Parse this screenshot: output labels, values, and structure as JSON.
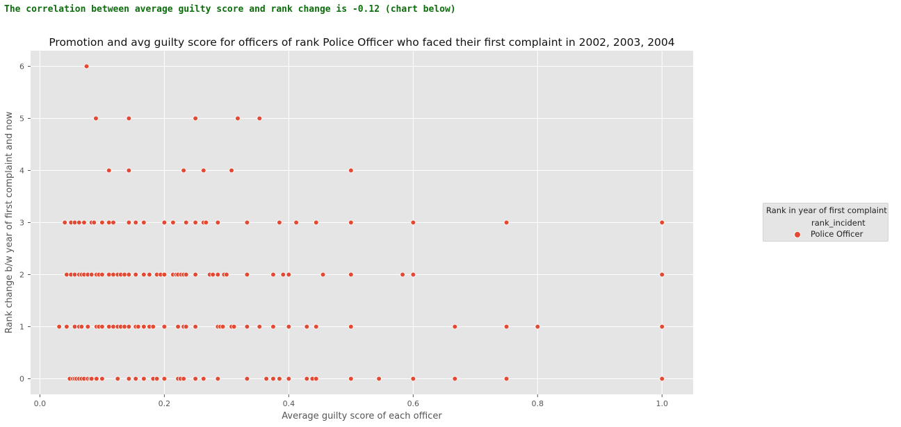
{
  "correlation_text": "The correlation between average guilty score and rank change is -0.12 (chart below)",
  "colors": {
    "point": "#e24a33",
    "plot_bg": "#e5e5e5",
    "grid": "#ffffff",
    "correlation_text": "#0b6e0b"
  },
  "chart_data": {
    "type": "scatter",
    "title": "Promotion and avg guilty score for officers of rank Police Officer who faced their first complaint in 2002, 2003, 2004",
    "xlabel": "Average guilty score of each officer",
    "ylabel": "Rank change b/w year of first complaint and now",
    "xlim": [
      -0.015,
      1.05
    ],
    "ylim": [
      -0.3,
      6.3
    ],
    "x_ticks": [
      0.0,
      0.2,
      0.4,
      0.6,
      0.8,
      1.0
    ],
    "x_tick_labels": [
      "0.0",
      "0.2",
      "0.4",
      "0.6",
      "0.8",
      "1.0"
    ],
    "y_ticks": [
      0,
      1,
      2,
      3,
      4,
      5,
      6
    ],
    "y_tick_labels": [
      "0",
      "1",
      "2",
      "3",
      "4",
      "5",
      "6"
    ],
    "grid": true,
    "legend": {
      "title": "Rank in year of first complaint",
      "subtitle": "rank_incident",
      "entries": [
        "Police Officer"
      ],
      "placement": "outside-right"
    },
    "series": [
      {
        "name": "Police Officer",
        "points": [
          [
            0.075,
            6
          ],
          [
            0.09,
            5
          ],
          [
            0.143,
            5
          ],
          [
            0.25,
            5
          ],
          [
            0.318,
            5
          ],
          [
            0.353,
            5
          ],
          [
            0.111,
            4
          ],
          [
            0.143,
            4
          ],
          [
            0.231,
            4
          ],
          [
            0.263,
            4
          ],
          [
            0.308,
            4
          ],
          [
            0.5,
            4
          ],
          [
            0.04,
            3
          ],
          [
            0.05,
            3
          ],
          [
            0.056,
            3
          ],
          [
            0.063,
            3
          ],
          [
            0.071,
            3
          ],
          [
            0.083,
            3
          ],
          [
            0.087,
            3
          ],
          [
            0.1,
            3
          ],
          [
            0.111,
            3
          ],
          [
            0.118,
            3
          ],
          [
            0.143,
            3
          ],
          [
            0.154,
            3
          ],
          [
            0.167,
            3
          ],
          [
            0.2,
            3
          ],
          [
            0.214,
            3
          ],
          [
            0.235,
            3
          ],
          [
            0.25,
            3
          ],
          [
            0.263,
            3
          ],
          [
            0.267,
            3
          ],
          [
            0.286,
            3
          ],
          [
            0.333,
            3
          ],
          [
            0.385,
            3
          ],
          [
            0.412,
            3
          ],
          [
            0.444,
            3
          ],
          [
            0.5,
            3
          ],
          [
            0.6,
            3
          ],
          [
            0.75,
            3
          ],
          [
            1.0,
            3
          ],
          [
            0.043,
            2
          ],
          [
            0.05,
            2
          ],
          [
            0.056,
            2
          ],
          [
            0.063,
            2
          ],
          [
            0.067,
            2
          ],
          [
            0.071,
            2
          ],
          [
            0.077,
            2
          ],
          [
            0.083,
            2
          ],
          [
            0.091,
            2
          ],
          [
            0.095,
            2
          ],
          [
            0.1,
            2
          ],
          [
            0.111,
            2
          ],
          [
            0.118,
            2
          ],
          [
            0.125,
            2
          ],
          [
            0.13,
            2
          ],
          [
            0.136,
            2
          ],
          [
            0.143,
            2
          ],
          [
            0.154,
            2
          ],
          [
            0.167,
            2
          ],
          [
            0.176,
            2
          ],
          [
            0.188,
            2
          ],
          [
            0.194,
            2
          ],
          [
            0.2,
            2
          ],
          [
            0.214,
            2
          ],
          [
            0.219,
            2
          ],
          [
            0.222,
            2
          ],
          [
            0.227,
            2
          ],
          [
            0.231,
            2
          ],
          [
            0.235,
            2
          ],
          [
            0.25,
            2
          ],
          [
            0.273,
            2
          ],
          [
            0.278,
            2
          ],
          [
            0.286,
            2
          ],
          [
            0.296,
            2
          ],
          [
            0.3,
            2
          ],
          [
            0.333,
            2
          ],
          [
            0.375,
            2
          ],
          [
            0.391,
            2
          ],
          [
            0.4,
            2
          ],
          [
            0.455,
            2
          ],
          [
            0.5,
            2
          ],
          [
            0.583,
            2
          ],
          [
            0.6,
            2
          ],
          [
            1.0,
            2
          ],
          [
            0.031,
            1
          ],
          [
            0.043,
            1
          ],
          [
            0.056,
            1
          ],
          [
            0.063,
            1
          ],
          [
            0.067,
            1
          ],
          [
            0.077,
            1
          ],
          [
            0.091,
            1
          ],
          [
            0.095,
            1
          ],
          [
            0.1,
            1
          ],
          [
            0.111,
            1
          ],
          [
            0.118,
            1
          ],
          [
            0.125,
            1
          ],
          [
            0.13,
            1
          ],
          [
            0.136,
            1
          ],
          [
            0.143,
            1
          ],
          [
            0.154,
            1
          ],
          [
            0.158,
            1
          ],
          [
            0.167,
            1
          ],
          [
            0.176,
            1
          ],
          [
            0.182,
            1
          ],
          [
            0.2,
            1
          ],
          [
            0.222,
            1
          ],
          [
            0.231,
            1
          ],
          [
            0.235,
            1
          ],
          [
            0.25,
            1
          ],
          [
            0.286,
            1
          ],
          [
            0.29,
            1
          ],
          [
            0.294,
            1
          ],
          [
            0.308,
            1
          ],
          [
            0.312,
            1
          ],
          [
            0.333,
            1
          ],
          [
            0.353,
            1
          ],
          [
            0.375,
            1
          ],
          [
            0.4,
            1
          ],
          [
            0.429,
            1
          ],
          [
            0.444,
            1
          ],
          [
            0.5,
            1
          ],
          [
            0.667,
            1
          ],
          [
            0.75,
            1
          ],
          [
            0.8,
            1
          ],
          [
            1.0,
            1
          ],
          [
            0.048,
            0
          ],
          [
            0.053,
            0
          ],
          [
            0.056,
            0
          ],
          [
            0.059,
            0
          ],
          [
            0.063,
            0
          ],
          [
            0.067,
            0
          ],
          [
            0.071,
            0
          ],
          [
            0.077,
            0
          ],
          [
            0.081,
            0
          ],
          [
            0.083,
            0
          ],
          [
            0.091,
            0
          ],
          [
            0.1,
            0
          ],
          [
            0.125,
            0
          ],
          [
            0.143,
            0
          ],
          [
            0.154,
            0
          ],
          [
            0.167,
            0
          ],
          [
            0.182,
            0
          ],
          [
            0.188,
            0
          ],
          [
            0.2,
            0
          ],
          [
            0.222,
            0
          ],
          [
            0.226,
            0
          ],
          [
            0.231,
            0
          ],
          [
            0.25,
            0
          ],
          [
            0.263,
            0
          ],
          [
            0.286,
            0
          ],
          [
            0.333,
            0
          ],
          [
            0.364,
            0
          ],
          [
            0.375,
            0
          ],
          [
            0.385,
            0
          ],
          [
            0.4,
            0
          ],
          [
            0.429,
            0
          ],
          [
            0.438,
            0
          ],
          [
            0.444,
            0
          ],
          [
            0.5,
            0
          ],
          [
            0.545,
            0
          ],
          [
            0.6,
            0
          ],
          [
            0.667,
            0
          ],
          [
            0.75,
            0
          ],
          [
            1.0,
            0
          ]
        ]
      }
    ]
  }
}
